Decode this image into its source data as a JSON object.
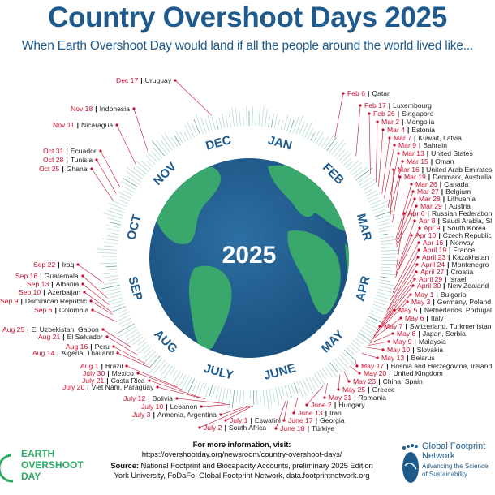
{
  "header": {
    "title": "Country Overshoot Days 2025",
    "subtitle": "When Earth Overshoot Day would land if all the people around the world lived like..."
  },
  "center_year": "2025",
  "months": [
    "JAN",
    "FEB",
    "MAR",
    "APR",
    "MAY",
    "JUNE",
    "JULY",
    "AUG",
    "SEP",
    "OCT",
    "NOV",
    "DEC"
  ],
  "separator": "|",
  "labels": [
    {
      "date": "Feb 6",
      "country": "Qatar"
    },
    {
      "date": "Feb 17",
      "country": "Luxembourg"
    },
    {
      "date": "Feb 26",
      "country": "Singapore"
    },
    {
      "date": "Mar 2",
      "country": "Mongolia"
    },
    {
      "date": "Mar 4",
      "country": "Estonia"
    },
    {
      "date": "Mar 7",
      "country": "Kuwait, Latvia"
    },
    {
      "date": "Mar 9",
      "country": "Bahrain"
    },
    {
      "date": "Mar 13",
      "country": "United States"
    },
    {
      "date": "Mar 15",
      "country": "Oman"
    },
    {
      "date": "Mar 16",
      "country": "United Arab Emirates"
    },
    {
      "date": "Mar 19",
      "country": "Denmark, Australia"
    },
    {
      "date": "Mar 26",
      "country": "Canada"
    },
    {
      "date": "Mar 27",
      "country": "Belgium"
    },
    {
      "date": "Mar 28",
      "country": "Lithuania"
    },
    {
      "date": "Mar 29",
      "country": "Austria"
    },
    {
      "date": "Apr 6",
      "country": "Russian Federation"
    },
    {
      "date": "Apr 8",
      "country": "Saudi Arabia, Sl"
    },
    {
      "date": "Apr 9",
      "country": "South Korea"
    },
    {
      "date": "Apr 10",
      "country": "Czech Republic"
    },
    {
      "date": "Apr 16",
      "country": "Norway"
    },
    {
      "date": "April 19",
      "country": "France"
    },
    {
      "date": "April 23",
      "country": "Kazakhstan"
    },
    {
      "date": "April 24",
      "country": "Montenegro"
    },
    {
      "date": "April 27",
      "country": "Croatia"
    },
    {
      "date": "April 29",
      "country": "Israel"
    },
    {
      "date": "April 30",
      "country": "New Zealand"
    },
    {
      "date": "May 1",
      "country": "Bulgaria"
    },
    {
      "date": "May 3",
      "country": "Germany, Poland"
    },
    {
      "date": "May 5",
      "country": "Netherlands, Portugal"
    },
    {
      "date": "May 6",
      "country": "Italy"
    },
    {
      "date": "May 7",
      "country": "Switzerland, Turkmenistan"
    },
    {
      "date": "May 8",
      "country": "Japan, Serbia"
    },
    {
      "date": "May 9",
      "country": "Malaysia"
    },
    {
      "date": "May 10",
      "country": "Slovakia"
    },
    {
      "date": "May 13",
      "country": "Belarus"
    },
    {
      "date": "May 17",
      "country": "Bosnia and Herzegovina, Ireland"
    },
    {
      "date": "May 20",
      "country": "United Kingdom"
    },
    {
      "date": "May 23",
      "country": "China, Spain"
    },
    {
      "date": "May 25",
      "country": "Greece"
    },
    {
      "date": "May 31",
      "country": "Romania"
    },
    {
      "date": "June 2",
      "country": "Hungary"
    },
    {
      "date": "June 13",
      "country": "Iran"
    },
    {
      "date": "June 17",
      "country": "Georgia"
    },
    {
      "date": "June 18",
      "country": "Türkiye"
    },
    {
      "date": "July 1",
      "country": "Eswatini"
    },
    {
      "date": "July 2",
      "country": "South Africa"
    },
    {
      "date": "July 3",
      "country": "Armenia, Argentina"
    },
    {
      "date": "July 10",
      "country": "Lebanon"
    },
    {
      "date": "July 12",
      "country": "Bolivia"
    },
    {
      "date": "July 20",
      "country": "Viet Nam, Paraguay"
    },
    {
      "date": "July 21",
      "country": "Costa Rica"
    },
    {
      "date": "July 30",
      "country": "Mexico"
    },
    {
      "date": "Aug 1",
      "country": "Brazil"
    },
    {
      "date": "Aug 14",
      "country": "Algeria, Thailand"
    },
    {
      "date": "Aug 16",
      "country": "Peru"
    },
    {
      "date": "Aug 21",
      "country": "El Salvador"
    },
    {
      "date": "Aug 25",
      "country": "El Uzbekistan, Gabon"
    },
    {
      "date": "Sep 6",
      "country": "Colombia"
    },
    {
      "date": "Sep 9",
      "country": "Dominican Republic"
    },
    {
      "date": "Sep 10",
      "country": "Azerbaijan"
    },
    {
      "date": "Sep 13",
      "country": "Albania"
    },
    {
      "date": "Sep 16",
      "country": "Guatemala"
    },
    {
      "date": "Sep 22",
      "country": "Iraq"
    },
    {
      "date": "Oct 25",
      "country": "Ghana"
    },
    {
      "date": "Oct 28",
      "country": "Tunisia"
    },
    {
      "date": "Oct 31",
      "country": "Ecuador"
    },
    {
      "date": "Nov 11",
      "country": "Nicaragua"
    },
    {
      "date": "Nov 18",
      "country": "Indonesia"
    },
    {
      "date": "Dec 17",
      "country": "Uruguay"
    }
  ],
  "footer": {
    "more_info_label": "For more information, visit:",
    "url": "https://overshootday.org/newsroom/country-overshoot-days/",
    "source_label": "Source:",
    "source_text": "National Footprint and Biocapacity Accounts, preliminary 2025 Edition",
    "source_line2": "York University, FoDaFo, Global Footprint Network, data.footprintnetwork.org"
  },
  "logos": {
    "eod": [
      "EARTH",
      "OVERSHOOT",
      "DAY"
    ],
    "gfn_name": "Global Footprint Network",
    "gfn_tagline": "Advancing the Science of Sustainability"
  },
  "colors": {
    "title": "#1e5b8c",
    "date": "#c8102e",
    "ocean": "#1e5b8c",
    "land": "#3aa76d",
    "ticks": "#7fbfb0"
  }
}
